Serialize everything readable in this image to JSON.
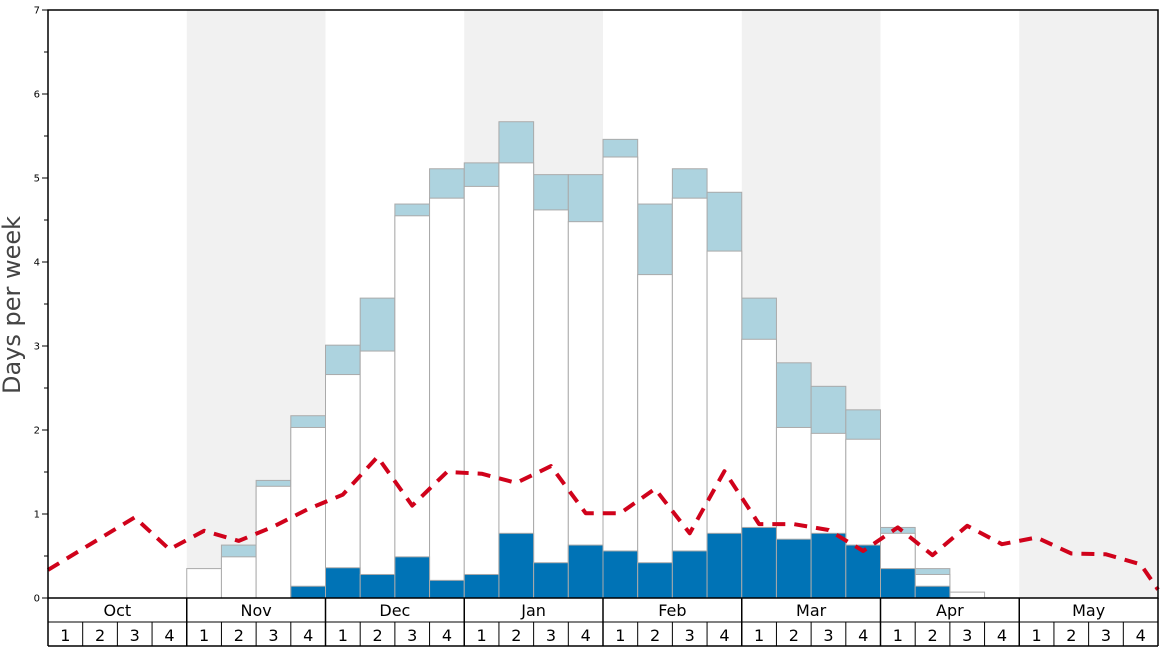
{
  "chart_data": {
    "type": "bar",
    "title": "",
    "ylabel": "Days per week",
    "ylim": [
      0,
      7
    ],
    "y_ticks": [
      "0",
      "1",
      "2",
      "3",
      "4",
      "5",
      "6",
      "7"
    ],
    "months": [
      "Oct",
      "Nov",
      "Dec",
      "Jan",
      "Feb",
      "Mar",
      "Apr",
      "May"
    ],
    "weeks": [
      "1",
      "2",
      "3",
      "4"
    ],
    "categories": [
      "Oct 1",
      "Oct 2",
      "Oct 3",
      "Oct 4",
      "Nov 1",
      "Nov 2",
      "Nov 3",
      "Nov 4",
      "Dec 1",
      "Dec 2",
      "Dec 3",
      "Dec 4",
      "Jan 1",
      "Jan 2",
      "Jan 3",
      "Jan 4",
      "Feb 1",
      "Feb 2",
      "Feb 3",
      "Feb 4",
      "Mar 1",
      "Mar 2",
      "Mar 3",
      "Mar 4",
      "Apr 1",
      "Apr 2",
      "Apr 3",
      "Apr 4",
      "May 1",
      "May 2",
      "May 3",
      "May 4"
    ],
    "series": [
      {
        "kind": "dark-bar",
        "values": [
          0,
          0,
          0,
          0,
          0,
          0,
          0,
          0.14,
          0.36,
          0.28,
          0.49,
          0.21,
          0.28,
          0.77,
          0.42,
          0.63,
          0.56,
          0.42,
          0.56,
          0.77,
          0.84,
          0.7,
          0.77,
          0.63,
          0.35,
          0.14,
          0,
          0,
          0,
          0,
          0,
          0
        ]
      },
      {
        "kind": "white-bar",
        "values": [
          0,
          0,
          0,
          0,
          0.35,
          0.49,
          1.33,
          2.03,
          2.66,
          2.94,
          4.55,
          4.76,
          4.9,
          5.18,
          4.62,
          4.48,
          5.25,
          3.85,
          4.76,
          4.13,
          3.08,
          2.03,
          1.96,
          1.89,
          0.77,
          0.28,
          0.07,
          0,
          0,
          0,
          0,
          0
        ]
      },
      {
        "kind": "light-bar",
        "values": [
          0,
          0,
          0,
          0,
          0,
          0.63,
          1.4,
          2.17,
          3.01,
          3.57,
          4.69,
          5.11,
          5.18,
          5.67,
          5.04,
          5.04,
          5.46,
          4.69,
          5.11,
          4.83,
          3.57,
          2.8,
          2.52,
          2.24,
          0.84,
          0.35,
          0,
          0,
          0,
          0,
          0,
          0
        ]
      },
      {
        "kind": "dashed-line",
        "values": [
          0.46,
          0.71,
          0.96,
          0.58,
          0.8,
          0.68,
          0.85,
          1.06,
          1.23,
          1.68,
          1.1,
          1.5,
          1.48,
          1.37,
          1.57,
          1.01,
          1.01,
          1.3,
          0.77,
          1.51,
          0.88,
          0.88,
          0.81,
          0.56,
          0.84,
          0.51,
          0.86,
          0.64,
          0.72,
          0.53,
          0.52,
          0.4
        ]
      }
    ],
    "colors": {
      "dark": "#0073b6",
      "light": "#add3df",
      "white": "#ffffff",
      "bar_stroke": "#aaaaaa",
      "shade": "#f1f1f1",
      "line": "#d0021b",
      "axis": "#000000"
    },
    "grid": false,
    "shaded_months": [
      "Nov",
      "Jan",
      "Mar",
      "May"
    ]
  }
}
